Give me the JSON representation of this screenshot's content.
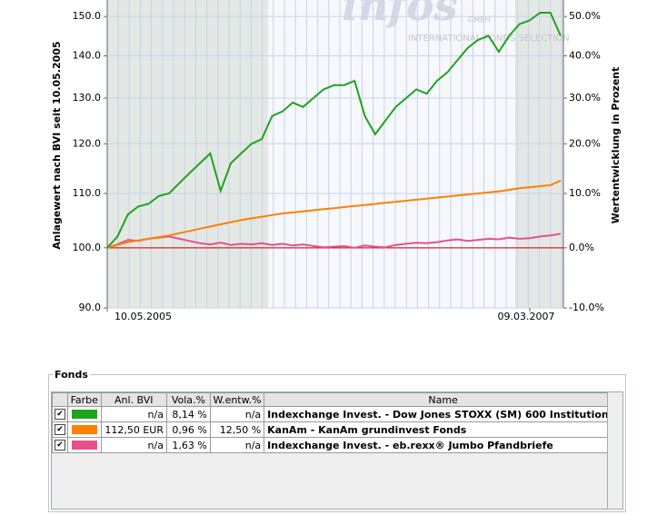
{
  "chart_data": {
    "type": "line",
    "y_label": "Anlagewert nach BVI seit 10.05.2005",
    "y2_label": "Wertentwicklung in Prozent",
    "watermark": "infos",
    "watermark_sub": "GMBH",
    "watermark_line": "INTERNATIONAL FONDS SELECTION",
    "categories": [
      "10.05.2005",
      null,
      null,
      null,
      null,
      null,
      null,
      null,
      null,
      null,
      null,
      null,
      null,
      null,
      null,
      null,
      null,
      null,
      null,
      null,
      null,
      null,
      null,
      null,
      null,
      null,
      null,
      null,
      null,
      null,
      null,
      null,
      null,
      null,
      null,
      null,
      null,
      null,
      null,
      null,
      null,
      "09.03.2007",
      null,
      null,
      null
    ],
    "log_scale": true,
    "ylim": [
      90,
      154.4
    ],
    "yticks": [
      {
        "value": 90,
        "label": "90.0"
      },
      {
        "value": 100,
        "label": "100.0"
      },
      {
        "value": 110,
        "label": "110.0"
      },
      {
        "value": 120,
        "label": "120.0"
      },
      {
        "value": 130,
        "label": "130.0"
      },
      {
        "value": 140,
        "label": "140.0"
      },
      {
        "value": 150,
        "label": "150.0"
      }
    ],
    "y2lim": [
      -10,
      54.4
    ],
    "y2ticks": [
      {
        "value": -10,
        "label": "-10.0%"
      },
      {
        "value": 0,
        "label": "0.0%"
      },
      {
        "value": 10,
        "label": "10.0%"
      },
      {
        "value": 20,
        "label": "20.0%"
      },
      {
        "value": 30,
        "label": "30.0%"
      },
      {
        "value": 40,
        "label": "40.0%"
      },
      {
        "value": 50,
        "label": "50.0%"
      }
    ],
    "baseline": 100,
    "baseline_color": "#cc0000",
    "series": [
      {
        "name": "Indexchange Invest. - Dow Jones STOXX (SM) 600 Institutional",
        "color": "#1fa31f",
        "values": [
          100,
          102,
          106,
          107.5,
          108,
          109.5,
          110,
          112,
          114,
          116,
          118,
          110.5,
          116,
          118,
          120,
          121,
          126,
          127,
          129,
          128,
          130,
          132,
          133,
          133,
          134,
          126,
          122,
          125,
          128,
          130,
          132,
          131,
          134,
          136,
          139,
          142,
          144,
          145,
          141,
          145,
          148,
          149,
          151,
          151,
          145
        ]
      },
      {
        "name": "KanAm - KanAm grundinvest Fonds",
        "color": "#ff8000",
        "values": [
          100,
          100.5,
          101,
          101.3,
          101.6,
          101.9,
          102.2,
          102.6,
          103,
          103.4,
          103.8,
          104.2,
          104.6,
          105,
          105.3,
          105.6,
          105.9,
          106.2,
          106.4,
          106.6,
          106.8,
          107,
          107.2,
          107.4,
          107.6,
          107.8,
          108,
          108.2,
          108.4,
          108.6,
          108.8,
          109,
          109.2,
          109.4,
          109.6,
          109.8,
          110,
          110.2,
          110.4,
          110.7,
          111,
          111.2,
          111.4,
          111.6,
          112.5
        ]
      },
      {
        "name": "Indexchange Invest. - eb.rexx® Jumbo Pfandbriefe",
        "color": "#e8508a",
        "values": [
          100,
          100.6,
          101.4,
          101.2,
          101.6,
          101.8,
          102,
          101.6,
          101.2,
          100.8,
          100.6,
          100.9,
          100.5,
          100.7,
          100.6,
          100.8,
          100.5,
          100.7,
          100.4,
          100.6,
          100.3,
          100.1,
          100.2,
          100.3,
          100,
          100.4,
          100.2,
          100.1,
          100.5,
          100.7,
          100.9,
          100.8,
          101,
          101.3,
          101.5,
          101.2,
          101.4,
          101.6,
          101.5,
          101.8,
          101.6,
          101.7,
          102,
          102.2,
          102.5
        ]
      }
    ]
  },
  "fonds": {
    "title": "Fonds",
    "columns": [
      "Farbe",
      "Anl. BVI",
      "Vola.%",
      "W.entw.%",
      "Name"
    ],
    "rows": [
      [
        "n/a",
        "8,14 %",
        "n/a",
        "Indexchange Invest. - Dow Jones STOXX (SM) 600 Institutional"
      ],
      [
        "112,50  EUR",
        "0,96 %",
        "12,50 %",
        "KanAm - KanAm grundinvest Fonds"
      ],
      [
        "n/a",
        "1,63 %",
        "n/a",
        "Indexchange Invest. - eb.rexx® Jumbo Pfandbriefe"
      ]
    ]
  }
}
